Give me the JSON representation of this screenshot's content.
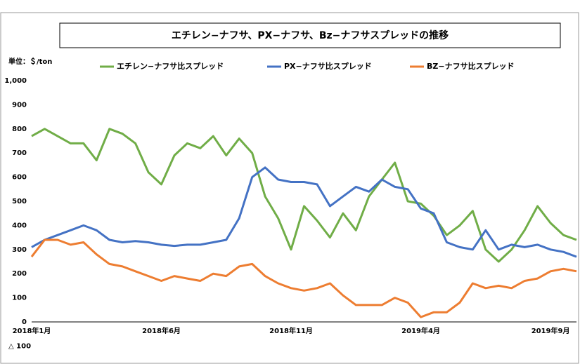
{
  "chart_data": {
    "type": "line",
    "title": "エチレン−ナフサ、PX−ナフサ、Bz−ナフサスプレッドの推移",
    "unit_label": "単位：＄/ton",
    "categories": [
      "2018年1月",
      null,
      null,
      null,
      null,
      null,
      null,
      null,
      null,
      null,
      "2018年6月",
      null,
      null,
      null,
      null,
      null,
      null,
      null,
      null,
      null,
      "2018年11月",
      null,
      null,
      null,
      null,
      null,
      null,
      null,
      null,
      null,
      "2019年4月",
      null,
      null,
      null,
      null,
      null,
      null,
      null,
      null,
      null,
      "2019年9月",
      null,
      null
    ],
    "series": [
      {
        "name": "エチレン−ナフサ比スプレッド",
        "color": "#70ad47",
        "values": [
          770,
          800,
          770,
          740,
          740,
          670,
          800,
          780,
          740,
          620,
          570,
          690,
          740,
          720,
          770,
          690,
          760,
          700,
          520,
          430,
          300,
          480,
          420,
          350,
          450,
          380,
          520,
          590,
          660,
          500,
          490,
          440,
          360,
          400,
          460,
          300,
          250,
          300,
          380,
          480,
          410,
          360,
          340
        ]
      },
      {
        "name": "PX−ナフサ比スプレッド",
        "color": "#4472c4",
        "values": [
          310,
          340,
          360,
          380,
          400,
          380,
          340,
          330,
          335,
          330,
          320,
          315,
          320,
          320,
          330,
          340,
          430,
          600,
          640,
          590,
          580,
          580,
          570,
          480,
          520,
          560,
          540,
          590,
          560,
          550,
          470,
          450,
          330,
          310,
          300,
          380,
          300,
          320,
          310,
          320,
          300,
          290,
          270
        ]
      },
      {
        "name": "BZ−ナフサ比スプレッド",
        "color": "#ed7d31",
        "values": [
          270,
          340,
          340,
          320,
          330,
          280,
          240,
          230,
          210,
          190,
          170,
          190,
          180,
          170,
          200,
          190,
          230,
          240,
          190,
          160,
          140,
          130,
          140,
          160,
          110,
          70,
          70,
          70,
          100,
          80,
          20,
          40,
          40,
          80,
          160,
          140,
          150,
          140,
          170,
          180,
          210,
          220,
          210
        ]
      }
    ],
    "ylim": [
      -100,
      1000
    ],
    "yticks": [
      {
        "value": -100,
        "label": "△ 100"
      },
      0,
      100,
      200,
      300,
      400,
      500,
      600,
      700,
      800,
      900,
      {
        "value": 1000,
        "label": "1,000"
      }
    ],
    "grid": false
  }
}
